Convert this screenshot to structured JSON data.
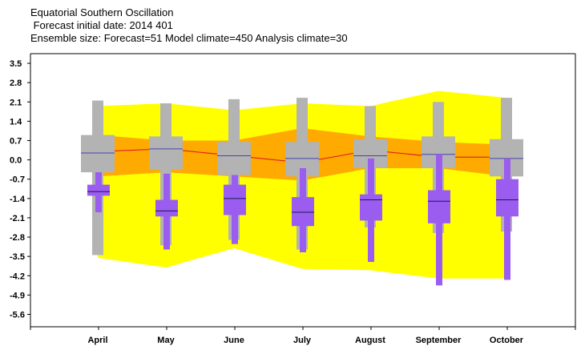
{
  "titles": {
    "line1": "Equatorial Southern Oscillation",
    "line2": " Forecast initial date: 2014 401",
    "line3": "Ensemble size: Forecast=51 Model climate=450 Analysis climate=30"
  },
  "chart_data": {
    "type": "box",
    "title": "Equatorial Southern Oscillation",
    "categories": [
      "April",
      "May",
      "June",
      "July",
      "August",
      "September",
      "October"
    ],
    "y_ticks": [
      3.5,
      2.8,
      2.1,
      1.4,
      0.7,
      0.0,
      -0.7,
      -1.4,
      -2.1,
      -2.8,
      -3.5,
      -4.2,
      -4.9,
      -5.6
    ],
    "y_tick_labels": [
      "3.5",
      "2.8",
      "2.1",
      "1.4",
      "0.7",
      "0.0",
      "-0.7",
      "-1.4",
      "-2.1",
      "-2.8",
      "-3.5",
      "-4.2",
      "-4.9",
      "-5.6"
    ],
    "ylim": [
      -6.05,
      3.85
    ],
    "grid": false,
    "colors": {
      "extreme_band": "#ffff00",
      "inner_band": "#ffaa00",
      "median_line": "#e02020",
      "model_climate": "#b3b3b3",
      "forecast": "#9b5cf0",
      "forecast_median": "#1a1a4a",
      "climate_median": "#4444aa"
    },
    "climate_bands": {
      "outer_upper": [
        1.95,
        2.05,
        1.8,
        2.05,
        1.95,
        2.5,
        2.25
      ],
      "outer_lower": [
        -3.55,
        -3.9,
        -3.2,
        -3.95,
        -4.0,
        -4.3,
        -4.3
      ],
      "inner_upper": [
        0.9,
        0.7,
        0.7,
        1.15,
        0.85,
        0.65,
        0.55
      ],
      "inner_lower": [
        -0.6,
        -0.45,
        -0.6,
        -0.75,
        -0.3,
        -0.3,
        -0.6
      ],
      "median": [
        0.3,
        0.4,
        0.15,
        -0.1,
        0.35,
        0.1,
        0.1
      ]
    },
    "model_climate": [
      {
        "min": -3.45,
        "p10": -0.45,
        "p25": -0.45,
        "median": 0.25,
        "p75": 0.9,
        "p90": 0.9,
        "max": 2.15
      },
      {
        "min": -3.1,
        "p10": -0.35,
        "p25": -0.35,
        "median": 0.4,
        "p75": 0.85,
        "p90": 0.85,
        "max": 2.05
      },
      {
        "min": -2.9,
        "p10": -0.55,
        "p25": -0.55,
        "median": 0.15,
        "p75": 0.65,
        "p90": 0.65,
        "max": 2.2
      },
      {
        "min": -3.25,
        "p10": -0.6,
        "p25": -0.6,
        "median": 0.05,
        "p75": 0.65,
        "p90": 0.65,
        "max": 2.25
      },
      {
        "min": -2.45,
        "p10": -0.3,
        "p25": -0.3,
        "median": 0.15,
        "p75": 0.75,
        "p90": 0.75,
        "max": 1.95
      },
      {
        "min": -2.65,
        "p10": -0.3,
        "p25": -0.3,
        "median": 0.2,
        "p75": 0.85,
        "p90": 0.85,
        "max": 2.1
      },
      {
        "min": -2.6,
        "p10": -0.6,
        "p25": -0.6,
        "median": 0.05,
        "p75": 0.75,
        "p90": 0.75,
        "max": 2.25
      }
    ],
    "forecast": [
      {
        "min": -1.9,
        "p10": -1.3,
        "p25": -1.3,
        "median": -1.15,
        "p75": -0.9,
        "p90": -0.45,
        "max": -0.45
      },
      {
        "min": -3.25,
        "p10": -2.05,
        "p25": -2.05,
        "median": -1.85,
        "p75": -1.45,
        "p90": -0.5,
        "max": -0.5
      },
      {
        "min": -3.05,
        "p10": -2.0,
        "p25": -2.0,
        "median": -1.4,
        "p75": -0.9,
        "p90": -0.55,
        "max": -0.55
      },
      {
        "min": -3.35,
        "p10": -2.4,
        "p25": -2.4,
        "median": -1.9,
        "p75": -1.35,
        "p90": -0.3,
        "max": -0.3
      },
      {
        "min": -3.7,
        "p10": -2.2,
        "p25": -2.2,
        "median": -1.45,
        "p75": -1.25,
        "p90": 0.05,
        "max": 0.05
      },
      {
        "min": -4.55,
        "p10": -2.3,
        "p25": -2.3,
        "median": -1.5,
        "p75": -1.1,
        "p90": 0.2,
        "max": 0.2
      },
      {
        "min": -4.35,
        "p10": -2.05,
        "p25": -2.05,
        "median": -1.45,
        "p75": -0.7,
        "p90": 0.05,
        "max": 0.05
      }
    ]
  }
}
